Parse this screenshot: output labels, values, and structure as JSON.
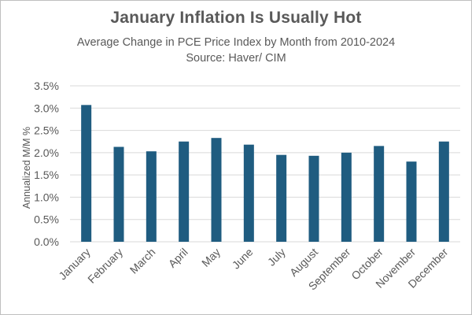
{
  "chart_data": {
    "type": "bar",
    "title": "January Inflation Is Usually Hot",
    "subtitle": "Average Change in PCE Price Index by Month from 2010-2024",
    "source": "Source: Haver/ CIM",
    "xlabel": "",
    "ylabel": "Annualized M/M %",
    "categories": [
      "January",
      "February",
      "March",
      "April",
      "May",
      "June",
      "July",
      "August",
      "September",
      "October",
      "November",
      "December"
    ],
    "values": [
      3.07,
      2.13,
      2.03,
      2.25,
      2.33,
      2.18,
      1.95,
      1.93,
      2.0,
      2.15,
      1.8,
      2.25
    ],
    "ylim": [
      0,
      3.5
    ],
    "yticks": [
      0,
      0.5,
      1,
      1.5,
      2,
      2.5,
      3,
      3.5
    ],
    "ytick_labels": [
      "0.0%",
      "0.5%",
      "1.0%",
      "1.5%",
      "2.0%",
      "2.5%",
      "3.0%",
      "3.5%"
    ],
    "grid": true,
    "bar_color": "#1f5c80",
    "grid_color": "#d9d9d9",
    "text_color": "#595959"
  }
}
